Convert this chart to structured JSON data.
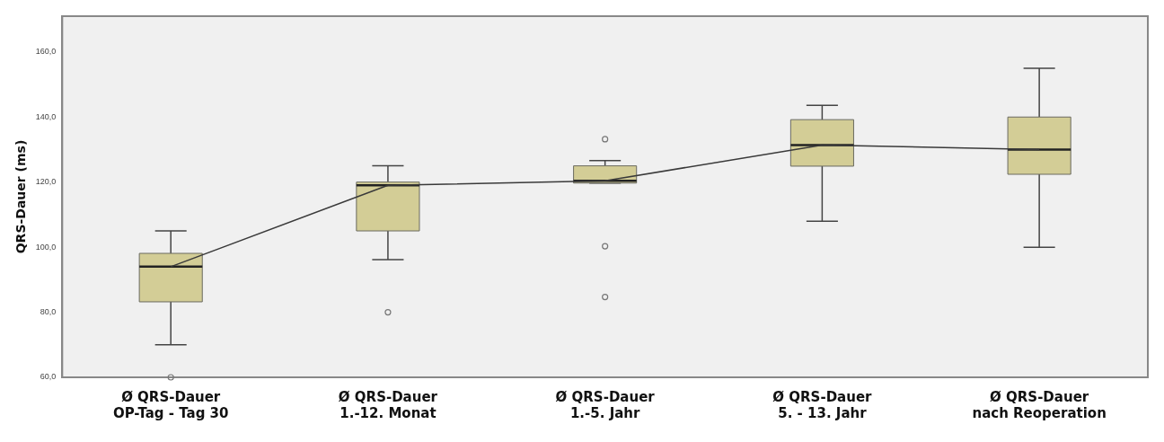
{
  "chart_data": {
    "type": "box",
    "ylabel": "QRS-Dauer (ms)",
    "categories": [
      "Ø QRS-Dauer\nOP-Tag - Tag 30",
      "Ø QRS-Dauer\n1.-12. Monat",
      "Ø QRS-Dauer\n1.-5. Jahr",
      "Ø QRS-Dauer\n5. - 13. Jahr",
      "Ø QRS-Dauer\nnach Reoperation"
    ],
    "color": "#d3cd96",
    "boxes": [
      {
        "low": 70,
        "q1": 83.2,
        "median": 94,
        "q3": 98.1,
        "high": 105,
        "outliers": [
          60
        ]
      },
      {
        "low": 96.2,
        "q1": 105,
        "median": 119,
        "q3": 120,
        "high": 125,
        "outliers": [
          80
        ]
      },
      {
        "low": 119.7,
        "q1": 119.7,
        "median": 120.4,
        "q3": 125,
        "high": 126.6,
        "outliers": [
          133.2,
          100.3,
          84.7
        ]
      },
      {
        "low": 108,
        "q1": 124.9,
        "median": 131.4,
        "q3": 139.2,
        "high": 143.6
      },
      {
        "low": 100,
        "q1": 122.4,
        "median": 130,
        "q3": 140,
        "high": 155
      }
    ],
    "series": [
      {
        "type": "line",
        "color": "#3a3a3a",
        "values": [
          94,
          119,
          120.4,
          131.4,
          130
        ]
      }
    ],
    "marker": "none",
    "ylim": [
      60,
      171
    ],
    "yticks": [
      {
        "value": 60,
        "label": "60,0"
      },
      {
        "value": 80,
        "label": "80,0"
      },
      {
        "value": 100,
        "label": "100,0"
      },
      {
        "value": 120,
        "label": "120,0"
      },
      {
        "value": 140,
        "label": "140,0"
      },
      {
        "value": 160,
        "label": "160,0"
      }
    ],
    "grid": false,
    "legend": false
  }
}
